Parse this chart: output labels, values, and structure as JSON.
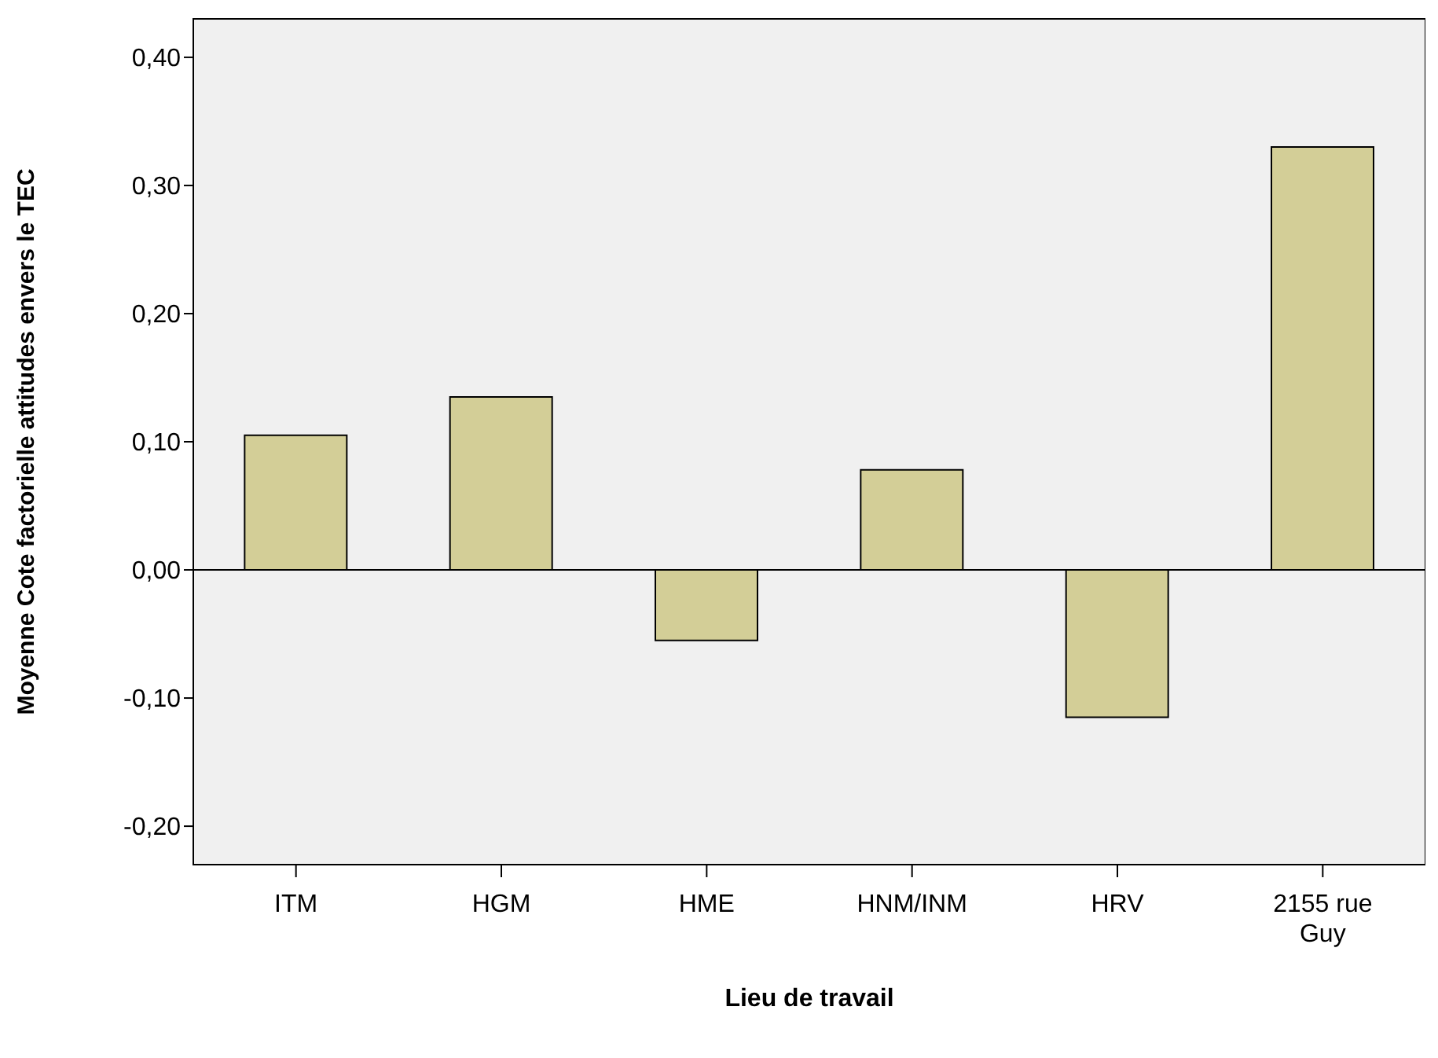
{
  "chart_data": {
    "type": "bar",
    "xlabel": "Lieu de travail",
    "ylabel": "Moyenne Cote factorielle attitudes envers le TEC",
    "categories": [
      "ITM",
      "HGM",
      "HME",
      "HNM/INM",
      "HRV",
      "2155 rue Guy"
    ],
    "values": [
      0.105,
      0.135,
      -0.055,
      0.078,
      -0.115,
      0.33
    ],
    "color": "#d3ce97",
    "ylim": [
      -0.23,
      0.43
    ],
    "yticks": [
      {
        "value": -0.2,
        "label": "-0,20"
      },
      {
        "value": -0.1,
        "label": "-0,10"
      },
      {
        "value": 0,
        "label": "0,00"
      },
      {
        "value": 0.1,
        "label": "0,10"
      },
      {
        "value": 0.2,
        "label": "0,20"
      },
      {
        "value": 0.3,
        "label": "0,30"
      },
      {
        "value": 0.4,
        "label": "0,40"
      }
    ],
    "ref_lines": [
      {
        "axis": "y",
        "value": 0,
        "color": "#000000"
      }
    ],
    "legend": false
  }
}
